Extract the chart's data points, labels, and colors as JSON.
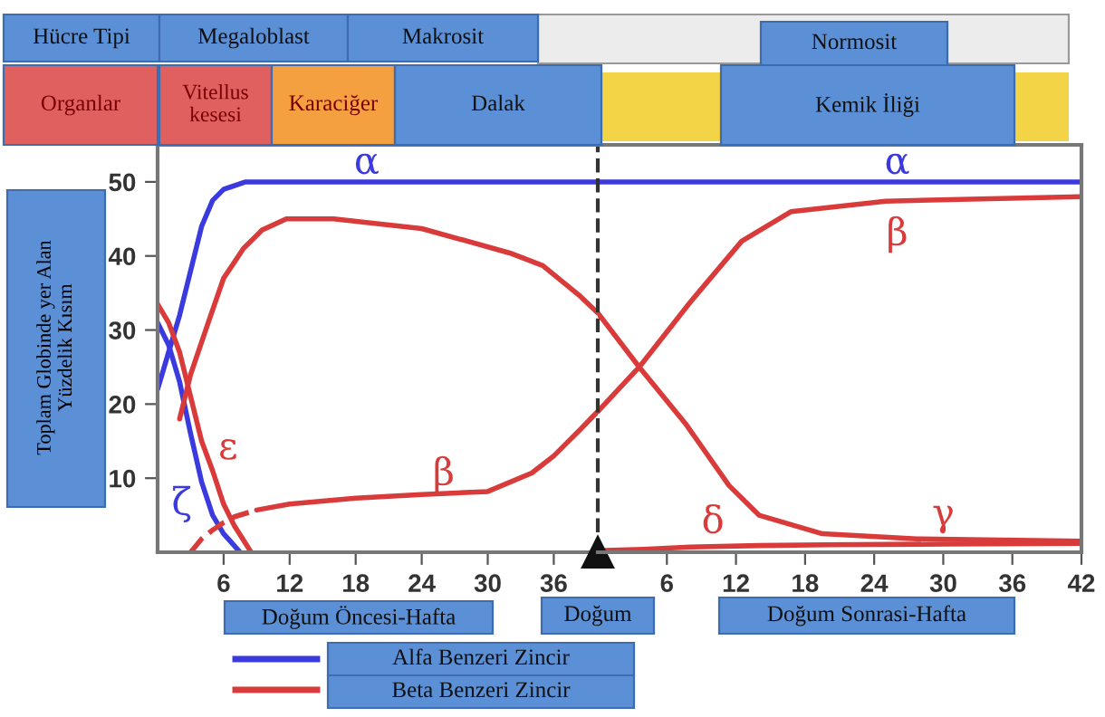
{
  "chart_data": [
    {
      "type": "line",
      "xlim": [
        0,
        40
      ],
      "ylim": [
        0,
        55
      ],
      "xticks": [
        6,
        12,
        18,
        24,
        30,
        36
      ],
      "yticks": [
        10,
        20,
        30,
        40,
        50
      ],
      "ylabel": "Toplam Globinde yer Alan\nYüzdelik Kısım",
      "grid": false,
      "marker": "none",
      "line_style": "solid",
      "annotations": [
        "Hücre Tipi",
        "Megaloblast",
        "Makrosit",
        "Normosit",
        "Organlar",
        "Vitellus kesesi",
        "Karaciğer",
        "Dalak",
        "Kemik İliği",
        "Doğum Öncesi-Hafta",
        "Doğum Sonrasi-Hafta",
        "Alfa Benzeri Zincir",
        "Beta Benzeri Zincir",
        {
          "text": "α",
          "x": 19,
          "y": 50
        },
        {
          "text": "ζ",
          "x": 4,
          "y": 9.5
        },
        {
          "text": "ε",
          "x": 5,
          "y": 11
        },
        {
          "text": "β",
          "x": 24,
          "y": 7.8
        }
      ],
      "series": [
        {
          "color": "#3a3adf",
          "x": [
            0,
            1,
            2,
            3,
            4,
            5,
            6,
            8,
            10,
            40
          ],
          "values": [
            22,
            27,
            32,
            38,
            44,
            47.5,
            49,
            50,
            50,
            50
          ]
        },
        {
          "color": "#3a3adf",
          "x": [
            0,
            1,
            2,
            3,
            4,
            5,
            6,
            7.5
          ],
          "values": [
            31,
            28,
            23,
            16,
            9.5,
            5,
            2.5,
            0
          ]
        },
        {
          "color": "#d93a3a",
          "x": [
            0,
            1,
            2,
            3,
            4,
            5,
            6,
            7,
            8.5
          ],
          "values": [
            33.5,
            31,
            27,
            21,
            15,
            11,
            6.5,
            3.5,
            0
          ]
        },
        {
          "color": "#d93a3a",
          "x": [
            2,
            3,
            4.6,
            6,
            7.8,
            9.5,
            11.7,
            16,
            24,
            32,
            35,
            38.3,
            40
          ],
          "values": [
            18,
            24,
            31,
            37,
            41,
            43.5,
            45,
            45,
            43.7,
            40.4,
            38.7,
            34.7,
            32.3
          ]
        },
        {
          "color": "#d93a3a",
          "line_style": "dashed",
          "x": [
            3,
            4,
            5,
            6,
            7,
            9
          ],
          "values": [
            0,
            1.8,
            3,
            4,
            4.8,
            5.7
          ]
        },
        {
          "color": "#d93a3a",
          "x": [
            9,
            12,
            18,
            24,
            30,
            34,
            36,
            38.3,
            40
          ],
          "values": [
            5.7,
            6.5,
            7.3,
            7.8,
            8.2,
            10.7,
            13,
            16.4,
            19
          ]
        }
      ]
    },
    {
      "type": "line",
      "xlim": [
        0,
        42
      ],
      "ylim": [
        0,
        55
      ],
      "xticks": [
        6,
        12,
        18,
        24,
        30,
        36,
        42
      ],
      "yticks": [
        10,
        20,
        30,
        40,
        50
      ],
      "tick_labels": "x",
      "grid": false,
      "marker": "none",
      "line_style": "solid",
      "annotations": [
        {
          "text": "α",
          "x": 26,
          "y": 50
        },
        {
          "text": "γ",
          "x": 30,
          "y": 1.8
        },
        {
          "text": "β",
          "x": 26,
          "y": 47.4
        },
        {
          "text": "δ",
          "x": 10,
          "y": 0.8
        }
      ],
      "ref_lines": [
        {
          "axis": "x",
          "value": 0,
          "label": "Doğum",
          "line_style": "dashed",
          "color": "#333333"
        }
      ],
      "series": [
        {
          "color": "#3a3adf",
          "x": [
            0,
            42
          ],
          "values": [
            50,
            50
          ]
        },
        {
          "color": "#d93a3a",
          "x": [
            0,
            3.6,
            7.6,
            11.4,
            14,
            19.5,
            27.7,
            42
          ],
          "values": [
            32.3,
            25,
            17.4,
            9,
            5,
            2.5,
            1.8,
            1.5
          ]
        },
        {
          "color": "#d93a3a",
          "x": [
            0,
            3.6,
            8,
            12.5,
            16.8,
            25,
            42
          ],
          "values": [
            19,
            25,
            33.7,
            42,
            46,
            47.4,
            48
          ]
        },
        {
          "color": "#d93a3a",
          "x": [
            0,
            4,
            8,
            14,
            20,
            30,
            42
          ],
          "values": [
            0.2,
            0.4,
            0.7,
            0.9,
            1.0,
            1.1,
            1.2
          ]
        }
      ]
    }
  ]
}
